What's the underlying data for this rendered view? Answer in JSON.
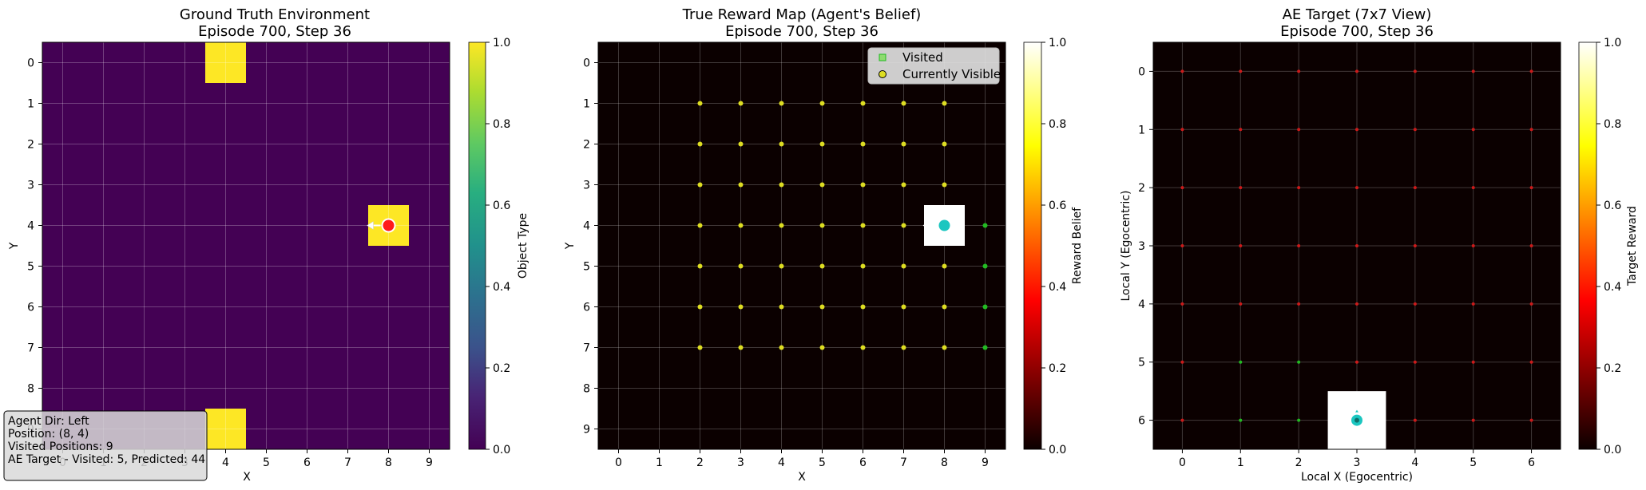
{
  "chart_data": [
    {
      "type": "heatmap",
      "title_line1": "Ground Truth Environment",
      "title_line2": "Episode 700, Step 36",
      "xlabel": "X",
      "ylabel": "Y",
      "colorbar_label": "Object Type",
      "colorbar_ticks": [
        "0.0",
        "0.2",
        "0.4",
        "0.6",
        "0.8",
        "1.0"
      ],
      "colormap": "viridis",
      "grid_size": 10,
      "x_ticks": [
        "0",
        "1",
        "2",
        "3",
        "4",
        "5",
        "6",
        "7",
        "8",
        "9"
      ],
      "y_ticks": [
        "0",
        "1",
        "2",
        "3",
        "4",
        "5",
        "6",
        "7",
        "8",
        "9"
      ],
      "background_value": 0.0,
      "cells_value_1": [
        [
          4,
          0
        ],
        [
          8,
          4
        ],
        [
          4,
          9
        ]
      ],
      "agent": {
        "x": 8,
        "y": 4,
        "dir": "left"
      },
      "info_box": [
        "Agent Dir: Left",
        "Position: (8, 4)",
        "Visited Positions: 9",
        "AE Target - Visited: 5, Predicted: 44"
      ]
    },
    {
      "type": "heatmap",
      "title_line1": "True Reward Map (Agent's Belief)",
      "title_line2": "Episode 700, Step 36",
      "xlabel": "X",
      "ylabel": "Y",
      "colorbar_label": "Reward Belief",
      "colorbar_ticks": [
        "0.0",
        "0.2",
        "0.4",
        "0.6",
        "0.8",
        "1.0"
      ],
      "colormap": "hot",
      "grid_size": 10,
      "x_ticks": [
        "0",
        "1",
        "2",
        "3",
        "4",
        "5",
        "6",
        "7",
        "8",
        "9"
      ],
      "y_ticks": [
        "0",
        "1",
        "2",
        "3",
        "4",
        "5",
        "6",
        "7",
        "8",
        "9"
      ],
      "cells_value_1": [
        [
          8,
          4
        ]
      ],
      "visible_x_range": [
        2,
        8
      ],
      "visible_y_range": [
        1,
        7
      ],
      "visited_cells": [
        [
          9,
          4
        ],
        [
          9,
          5
        ],
        [
          9,
          6
        ],
        [
          9,
          7
        ]
      ],
      "legend": [
        "Visited",
        "Currently Visible"
      ],
      "legend_position": "upper right",
      "agent": {
        "x": 8,
        "y": 4,
        "dir": "left"
      }
    },
    {
      "type": "heatmap",
      "title_line1": "AE Target (7x7 View)",
      "title_line2": "Episode 700, Step 36",
      "xlabel": "Local X (Egocentric)",
      "ylabel": "Local Y (Egocentric)",
      "colorbar_label": "Target Reward",
      "colorbar_ticks": [
        "0.0",
        "0.2",
        "0.4",
        "0.6",
        "0.8",
        "1.0"
      ],
      "colormap": "hot",
      "grid_size": 7,
      "x_ticks": [
        "0",
        "1",
        "2",
        "3",
        "4",
        "5",
        "6"
      ],
      "y_ticks": [
        "0",
        "1",
        "2",
        "3",
        "4",
        "5",
        "6"
      ],
      "cells_value_1": [
        [
          3,
          6
        ]
      ],
      "green_markers": [
        [
          1,
          5
        ],
        [
          2,
          5
        ],
        [
          1,
          6
        ],
        [
          2,
          6
        ]
      ],
      "agent": {
        "x": 3,
        "y": 6,
        "dir": "up"
      }
    }
  ],
  "colors": {
    "viridis_low": "#440154",
    "viridis_high": "#fde725",
    "agent_ground": "#ff1a1a",
    "agent_belief": "#1bc6c0",
    "visible_marker": "#dddd22",
    "visited_marker": "#22bb22",
    "red_marker": "#cc1a1a"
  }
}
